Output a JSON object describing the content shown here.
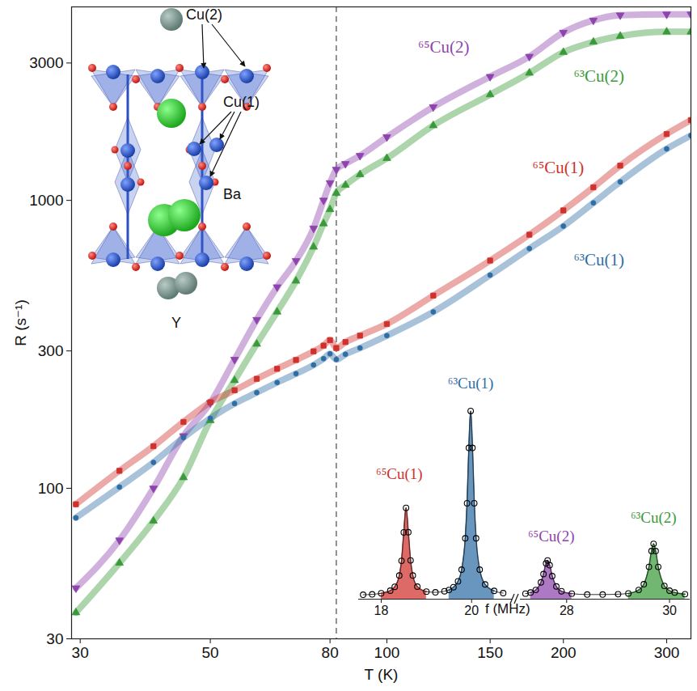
{
  "chart_data": [
    {
      "type": "line",
      "x_label": "T (K)",
      "y_label": "R (s⁻¹)",
      "log": true,
      "grid": false,
      "xlim": [
        29,
        330
      ],
      "ylim": [
        30,
        4700
      ],
      "xticks": [
        30,
        50,
        80,
        100,
        150,
        200,
        300
      ],
      "yticks": [
        30,
        100,
        300,
        1000,
        3000
      ],
      "reference_lines": [
        {
          "x": 82,
          "line_style": "dashed"
        }
      ],
      "series": [
        {
          "name": "⁶⁵Cu(2)",
          "color": "#8e44ad",
          "marker": "triangle-down",
          "label_x": 125,
          "label_y": 3400,
          "x": [
            29.5,
            35,
            40,
            45,
            50,
            55,
            60,
            65,
            70,
            75,
            78,
            80,
            82,
            85,
            90,
            100,
            120,
            150,
            175,
            200,
            225,
            250,
            300,
            330
          ],
          "values": [
            45,
            66,
            100,
            152,
            198,
            280,
            385,
            500,
            617,
            800,
            1000,
            1150,
            1280,
            1340,
            1430,
            1660,
            2110,
            2690,
            3160,
            3830,
            4220,
            4400,
            4430,
            4430
          ]
        },
        {
          "name": "⁶³Cu(2)",
          "color": "#3a9a3a",
          "marker": "triangle",
          "label_x": 230,
          "label_y": 2700,
          "x": [
            29.5,
            35,
            40,
            45,
            50,
            55,
            60,
            65,
            70,
            75,
            78,
            80,
            82,
            85,
            90,
            100,
            120,
            150,
            175,
            200,
            225,
            250,
            300,
            330
          ],
          "values": [
            37,
            55,
            77,
            109,
            172,
            237,
            317,
            410,
            525,
            689,
            830,
            930,
            1060,
            1130,
            1230,
            1400,
            1820,
            2330,
            2770,
            3270,
            3550,
            3720,
            3850,
            3850
          ]
        },
        {
          "name": "⁶⁵Cu(1)",
          "color": "#d0312d",
          "marker": "square",
          "label_x": 196,
          "label_y": 1300,
          "x": [
            29.5,
            35,
            40,
            45,
            50,
            55,
            60,
            65,
            70,
            75,
            78,
            80,
            82,
            85,
            90,
            100,
            120,
            150,
            175,
            200,
            225,
            250,
            300,
            330
          ],
          "values": [
            88,
            115,
            140,
            170,
            199,
            219,
            240,
            260,
            279,
            299,
            313,
            327,
            307,
            322,
            339,
            372,
            467,
            618,
            760,
            923,
            1110,
            1320,
            1700,
            1900
          ]
        },
        {
          "name": "⁶³Cu(1)",
          "color": "#2f6ea5",
          "marker": "circle",
          "label_x": 230,
          "label_y": 620,
          "x": [
            29.5,
            35,
            40,
            45,
            50,
            55,
            60,
            65,
            70,
            75,
            78,
            80,
            82,
            85,
            90,
            100,
            120,
            150,
            175,
            200,
            225,
            250,
            300,
            330
          ],
          "values": [
            79,
            101,
            123,
            150,
            175,
            197,
            215,
            233,
            250,
            268,
            282,
            293,
            280,
            292,
            307,
            339,
            410,
            550,
            680,
            814,
            980,
            1160,
            1510,
            1680
          ]
        }
      ]
    },
    {
      "type": "area",
      "x_label": "f (MHz)",
      "tick_labels": "x",
      "ylim": [
        0,
        1.25
      ],
      "panels": [
        {
          "xlim": [
            17.5,
            20.9
          ],
          "xticks": [
            18,
            20
          ]
        },
        {
          "xlim": [
            27.1,
            30.4
          ],
          "xticks": [
            28,
            30
          ]
        }
      ],
      "marker": "circle",
      "color": "#000000",
      "x": [
        17.6,
        17.8,
        18.0,
        18.2,
        18.3,
        18.4,
        18.45,
        18.5,
        18.55,
        18.6,
        18.65,
        18.7,
        18.8,
        19.0,
        19.2,
        19.4,
        19.5,
        19.6,
        19.7,
        19.78,
        19.86,
        19.9,
        19.94,
        19.98,
        20.02,
        20.06,
        20.1,
        20.18,
        20.3,
        20.5,
        20.7,
        27.2,
        27.3,
        27.4,
        27.5,
        27.55,
        27.6,
        27.63,
        27.67,
        27.72,
        27.8,
        27.9,
        28.1,
        28.4,
        28.7,
        29.0,
        29.2,
        29.4,
        29.5,
        29.6,
        29.65,
        29.69,
        29.73,
        29.78,
        29.9,
        30.0,
        30.1,
        30.3
      ],
      "values": [
        0.024,
        0.026,
        0.032,
        0.046,
        0.067,
        0.128,
        0.208,
        0.362,
        0.495,
        0.363,
        0.21,
        0.128,
        0.068,
        0.041,
        0.037,
        0.043,
        0.05,
        0.065,
        0.097,
        0.16,
        0.33,
        0.52,
        0.82,
        1.02,
        0.82,
        0.52,
        0.33,
        0.16,
        0.08,
        0.045,
        0.033,
        0.03,
        0.036,
        0.05,
        0.091,
        0.136,
        0.194,
        0.21,
        0.184,
        0.125,
        0.069,
        0.043,
        0.03,
        0.025,
        0.025,
        0.027,
        0.031,
        0.05,
        0.081,
        0.175,
        0.261,
        0.3,
        0.261,
        0.175,
        0.072,
        0.046,
        0.036,
        0.027
      ],
      "series": [
        {
          "name": "⁶⁵Cu(1)",
          "color": "#d0312d",
          "label_x": 18.4,
          "label_y": 0.68,
          "x": [
            18.0,
            18.2,
            18.3,
            18.4,
            18.45,
            18.5,
            18.55,
            18.6,
            18.65,
            18.7,
            18.8,
            19.0
          ],
          "values": [
            0.032,
            0.046,
            0.067,
            0.128,
            0.208,
            0.362,
            0.495,
            0.363,
            0.21,
            0.128,
            0.068,
            0.041
          ]
        },
        {
          "name": "⁶³Cu(1)",
          "color": "#2f6ea5",
          "label_x": 19.98,
          "label_y": 1.17,
          "x": [
            19.5,
            19.6,
            19.7,
            19.78,
            19.86,
            19.9,
            19.94,
            19.98,
            20.02,
            20.06,
            20.1,
            20.18,
            20.3,
            20.5
          ],
          "values": [
            0.05,
            0.065,
            0.097,
            0.16,
            0.33,
            0.52,
            0.82,
            1.02,
            0.82,
            0.52,
            0.33,
            0.16,
            0.08,
            0.045
          ]
        },
        {
          "name": "⁶⁵Cu(2)",
          "color": "#8e44ad",
          "label_x": 27.7,
          "label_y": 0.34,
          "x": [
            27.3,
            27.4,
            27.5,
            27.55,
            27.6,
            27.63,
            27.67,
            27.72,
            27.8,
            27.9,
            28.1
          ],
          "values": [
            0.036,
            0.05,
            0.091,
            0.136,
            0.194,
            0.21,
            0.184,
            0.125,
            0.069,
            0.043,
            0.03
          ]
        },
        {
          "name": "⁶³Cu(2)",
          "color": "#3a9a3a",
          "label_x": 29.69,
          "label_y": 0.44,
          "x": [
            29.2,
            29.4,
            29.5,
            29.6,
            29.65,
            29.69,
            29.73,
            29.78,
            29.9,
            30.0,
            30.1,
            30.3
          ],
          "values": [
            0.031,
            0.05,
            0.081,
            0.175,
            0.261,
            0.3,
            0.261,
            0.175,
            0.072,
            0.046,
            0.036,
            0.027
          ]
        }
      ]
    }
  ],
  "structure": {
    "cu2_label": "Cu(2)",
    "cu1_label": "Cu(1)",
    "ba_label": "Ba",
    "y_label": "Y"
  }
}
